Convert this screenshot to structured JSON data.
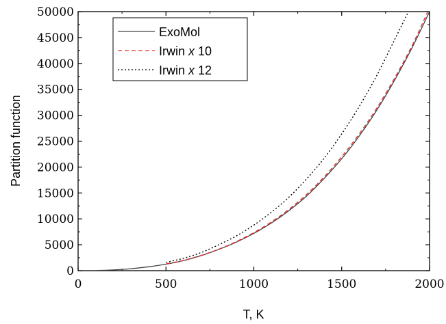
{
  "chart_data": {
    "type": "line",
    "title": "",
    "xlabel": "T, K",
    "ylabel": "Partition function",
    "xlim": [
      0,
      2000
    ],
    "ylim": [
      0,
      50000
    ],
    "x_ticks": [
      0,
      500,
      1000,
      1500,
      2000
    ],
    "x_tick_labels": [
      "0",
      "500",
      "1000",
      "1500",
      "2000"
    ],
    "y_ticks": [
      0,
      5000,
      10000,
      15000,
      20000,
      25000,
      30000,
      35000,
      40000,
      45000,
      50000
    ],
    "y_tick_labels": [
      "0",
      "5000",
      "10000",
      "15000",
      "20000",
      "25000",
      "30000",
      "35000",
      "40000",
      "45000",
      "50000"
    ],
    "grid": false,
    "legend_position": "top-left",
    "series": [
      {
        "name": "ExoMol",
        "legend_parts": [
          "ExoMol"
        ],
        "color": "#404040",
        "dash": "solid",
        "x": [
          100,
          200,
          300,
          400,
          500,
          600,
          700,
          800,
          900,
          1000,
          1100,
          1200,
          1300,
          1400,
          1500,
          1600,
          1700,
          1800,
          1900,
          2000
        ],
        "y": [
          30,
          150,
          380,
          750,
          1250,
          1950,
          2900,
          4100,
          5500,
          7200,
          9200,
          11600,
          14400,
          17800,
          21600,
          26000,
          31000,
          36700,
          43000,
          50000
        ]
      },
      {
        "name": "Irwin x 10",
        "legend_parts": [
          "Irwin ",
          "x",
          " 10"
        ],
        "color": "#e03030",
        "dash": "6,4",
        "x": [
          500,
          600,
          700,
          800,
          900,
          1000,
          1100,
          1200,
          1300,
          1400,
          1500,
          1600,
          1700,
          1800,
          1900,
          1990
        ],
        "y": [
          1300,
          2000,
          2950,
          4150,
          5600,
          7350,
          9400,
          11850,
          14700,
          18100,
          22000,
          26400,
          31400,
          37100,
          43400,
          50000
        ]
      },
      {
        "name": "Irwin x 12",
        "legend_parts": [
          "Irwin ",
          "x",
          " 12"
        ],
        "color": "#000000",
        "dash": "2,3",
        "x": [
          500,
          600,
          700,
          800,
          900,
          1000,
          1100,
          1200,
          1300,
          1400,
          1500,
          1600,
          1700,
          1800,
          1880
        ],
        "y": [
          1600,
          2400,
          3500,
          5000,
          6700,
          8800,
          11300,
          14200,
          17700,
          21700,
          26400,
          31700,
          37700,
          44500,
          50000
        ]
      }
    ]
  }
}
